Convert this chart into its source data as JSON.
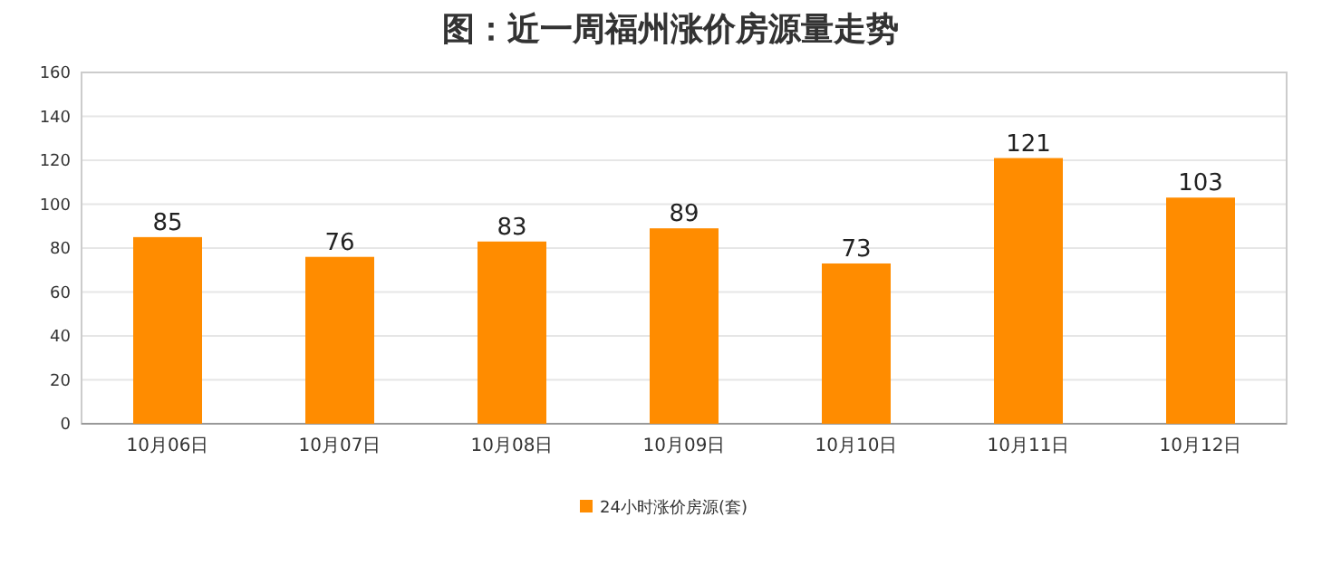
{
  "chart_data": {
    "type": "bar",
    "title": "图：近一周福州涨价房源量走势",
    "categories": [
      "10月06日",
      "10月07日",
      "10月08日",
      "10月09日",
      "10月10日",
      "10月11日",
      "10月12日"
    ],
    "series": [
      {
        "name": "24小时涨价房源(套)",
        "color": "#ff8c00",
        "values": [
          85,
          76,
          83,
          89,
          73,
          121,
          103
        ]
      }
    ],
    "ylim": [
      0,
      160
    ],
    "yticks": [
      0,
      20,
      40,
      60,
      80,
      100,
      120,
      140,
      160
    ],
    "grid": "y",
    "legend": "bottom",
    "data_labels": true
  }
}
